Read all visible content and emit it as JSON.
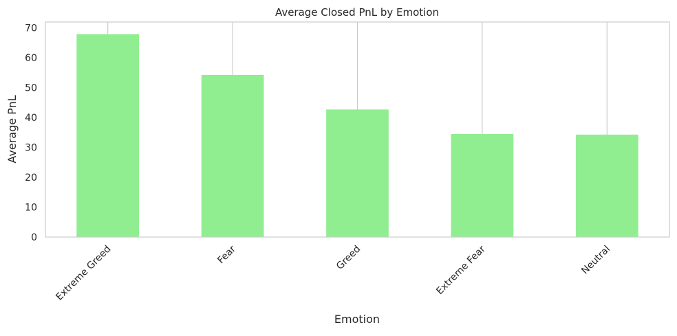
{
  "chart_data": {
    "type": "bar",
    "title": "Average Closed PnL by Emotion",
    "xlabel": "Emotion",
    "ylabel": "Average PnL",
    "categories": [
      "Extreme Greed",
      "Fear",
      "Greed",
      "Extreme Fear",
      "Neutral"
    ],
    "values": [
      67.9,
      54.3,
      42.7,
      34.5,
      34.3
    ],
    "ylim": [
      0,
      72
    ],
    "yticks": [
      0,
      10,
      20,
      30,
      40,
      50,
      60,
      70
    ],
    "grid": "vertical",
    "xtick_rotation": 45,
    "colors": {
      "bar": "#90ee90",
      "grid": "#cccccc",
      "frame": "#cccccc",
      "text": "#262626"
    }
  }
}
